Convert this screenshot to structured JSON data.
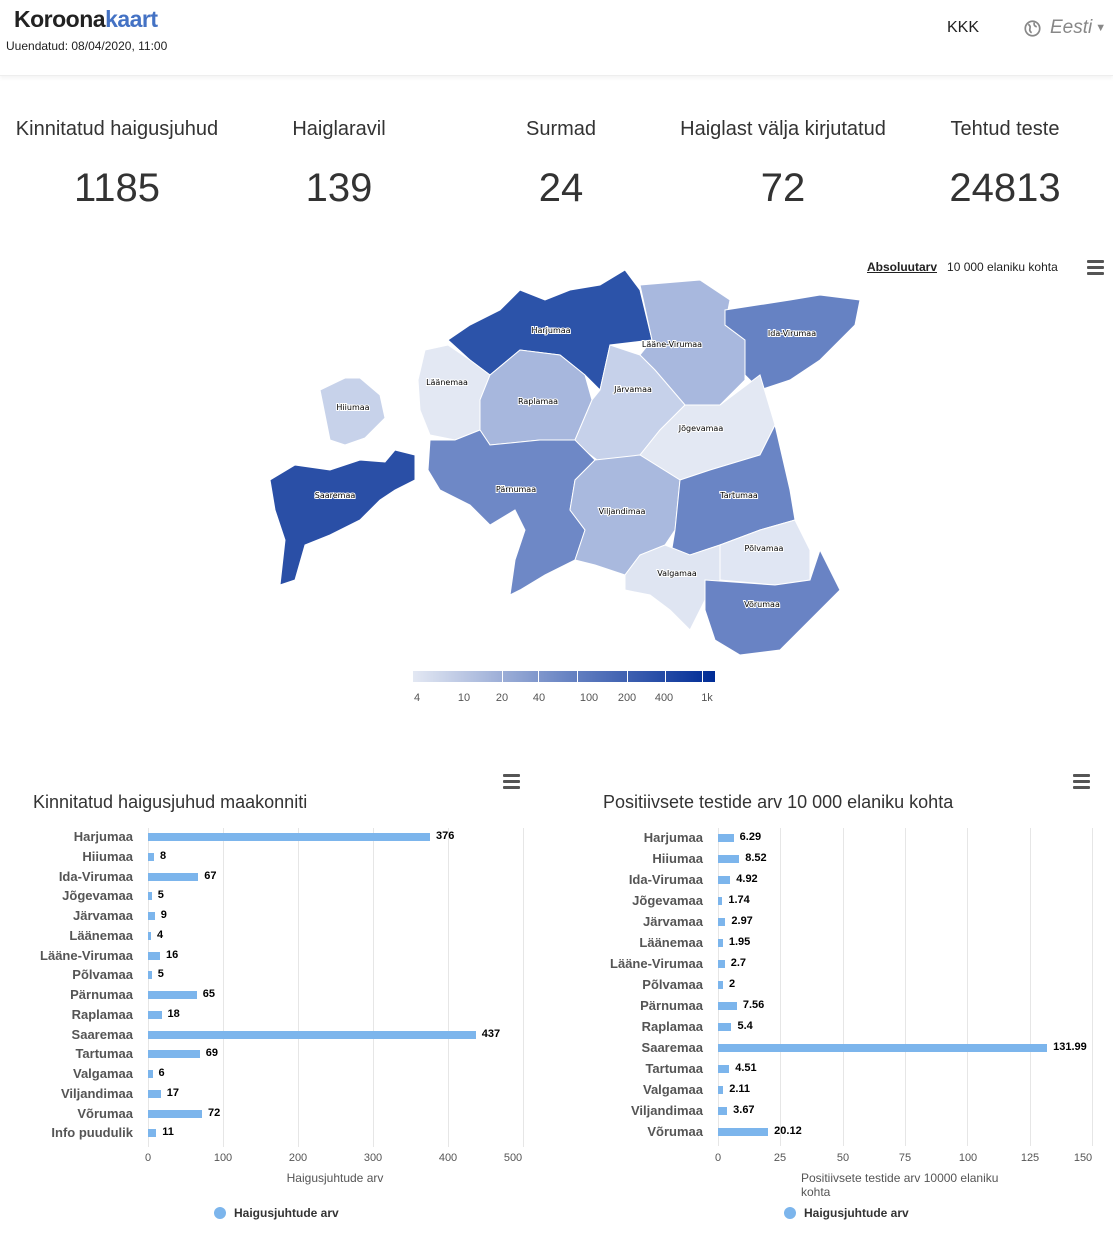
{
  "header": {
    "logo_a": "Koroona",
    "logo_b": "kaart",
    "updated": "Uuendatud: 08/04/2020, 11:00",
    "faq": "KKK",
    "language": "Eesti"
  },
  "stats": [
    {
      "label": "Kinnitatud haigusjuhud",
      "value": "1185"
    },
    {
      "label": "Haiglaravil",
      "value": "139"
    },
    {
      "label": "Surmad",
      "value": "24"
    },
    {
      "label": "Haiglast välja kirjutatud",
      "value": "72"
    },
    {
      "label": "Tehtud teste",
      "value": "24813"
    }
  ],
  "map": {
    "toggle_absolute": "Absoluutarv",
    "toggle_per_capita": "10 000 elaniku kohta",
    "scale_ticks": [
      "4",
      "10",
      "20",
      "40",
      "100",
      "200",
      "400",
      "1k"
    ],
    "counties": [
      "Harjumaa",
      "Lääne-Virumaa",
      "Ida-Virumaa",
      "Läänemaa",
      "Hiiumaa",
      "Raplamaa",
      "Järvamaa",
      "Jõgevamaa",
      "Saaremaa",
      "Pärnumaa",
      "Viljandimaa",
      "Tartumaa",
      "Põlvamaa",
      "Valgamaa",
      "Võrumaa"
    ]
  },
  "colors": {
    "bar": "#7cb5ec",
    "brand": "#4472c4"
  },
  "chart_data": [
    {
      "type": "bar",
      "title": "Kinnitatud haigusjuhud maakonniti",
      "xlabel": "Haigusjuhtude arv",
      "legend": "Haigusjuhtude arv",
      "xlim": [
        0,
        500
      ],
      "ticks": [
        "0",
        "100",
        "200",
        "300",
        "400",
        "500"
      ],
      "categories": [
        "Harjumaa",
        "Hiiumaa",
        "Ida-Virumaa",
        "Jõgevamaa",
        "Järvamaa",
        "Läänemaa",
        "Lääne-Virumaa",
        "Põlvamaa",
        "Pärnumaa",
        "Raplamaa",
        "Saaremaa",
        "Tartumaa",
        "Valgamaa",
        "Viljandimaa",
        "Võrumaa",
        "Info puudulik"
      ],
      "values": [
        376,
        8,
        67,
        5,
        9,
        4,
        16,
        5,
        65,
        18,
        437,
        69,
        6,
        17,
        72,
        11
      ]
    },
    {
      "type": "bar",
      "title": "Positiivsete testide arv 10 000 elaniku kohta",
      "xlabel": "Positiivsete testide arv 10000 elaniku kohta",
      "legend": "Haigusjuhtude arv",
      "xlim": [
        0,
        150
      ],
      "ticks": [
        "0",
        "25",
        "50",
        "75",
        "100",
        "125",
        "150"
      ],
      "categories": [
        "Harjumaa",
        "Hiiumaa",
        "Ida-Virumaa",
        "Jõgevamaa",
        "Järvamaa",
        "Läänemaa",
        "Lääne-Virumaa",
        "Põlvamaa",
        "Pärnumaa",
        "Raplamaa",
        "Saaremaa",
        "Tartumaa",
        "Valgamaa",
        "Viljandimaa",
        "Võrumaa"
      ],
      "values": [
        6.29,
        8.52,
        4.92,
        1.74,
        2.97,
        1.95,
        2.7,
        2,
        7.56,
        5.4,
        131.99,
        4.51,
        2.11,
        3.67,
        20.12
      ]
    }
  ]
}
